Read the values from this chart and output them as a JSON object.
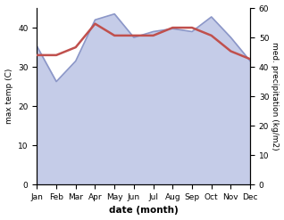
{
  "months": [
    "Jan",
    "Feb",
    "Mar",
    "Apr",
    "May",
    "Jun",
    "Jul",
    "Aug",
    "Sep",
    "Oct",
    "Nov",
    "Dec"
  ],
  "temp": [
    33,
    33,
    35,
    41,
    38,
    38,
    38,
    40,
    40,
    38,
    34,
    32
  ],
  "precip": [
    47,
    35,
    42,
    56,
    58,
    50,
    52,
    53,
    52,
    57,
    50,
    42
  ],
  "temp_color": "#c0504d",
  "precip_color": "#8c97c8",
  "precip_fill_color": "#c5cce8",
  "temp_ylim": [
    0,
    45
  ],
  "precip_ylim": [
    0,
    60
  ],
  "xlabel": "date (month)",
  "ylabel_left": "max temp (C)",
  "ylabel_right": "med. precipitation (kg/m2)",
  "left_yticks": [
    0,
    10,
    20,
    30,
    40
  ],
  "right_yticks": [
    0,
    10,
    20,
    30,
    40,
    50,
    60
  ],
  "bg_color": "#ffffff",
  "label_fontsize": 6.5,
  "xlabel_fontsize": 7.5,
  "linewidth_temp": 1.8,
  "linewidth_precip": 1.2
}
